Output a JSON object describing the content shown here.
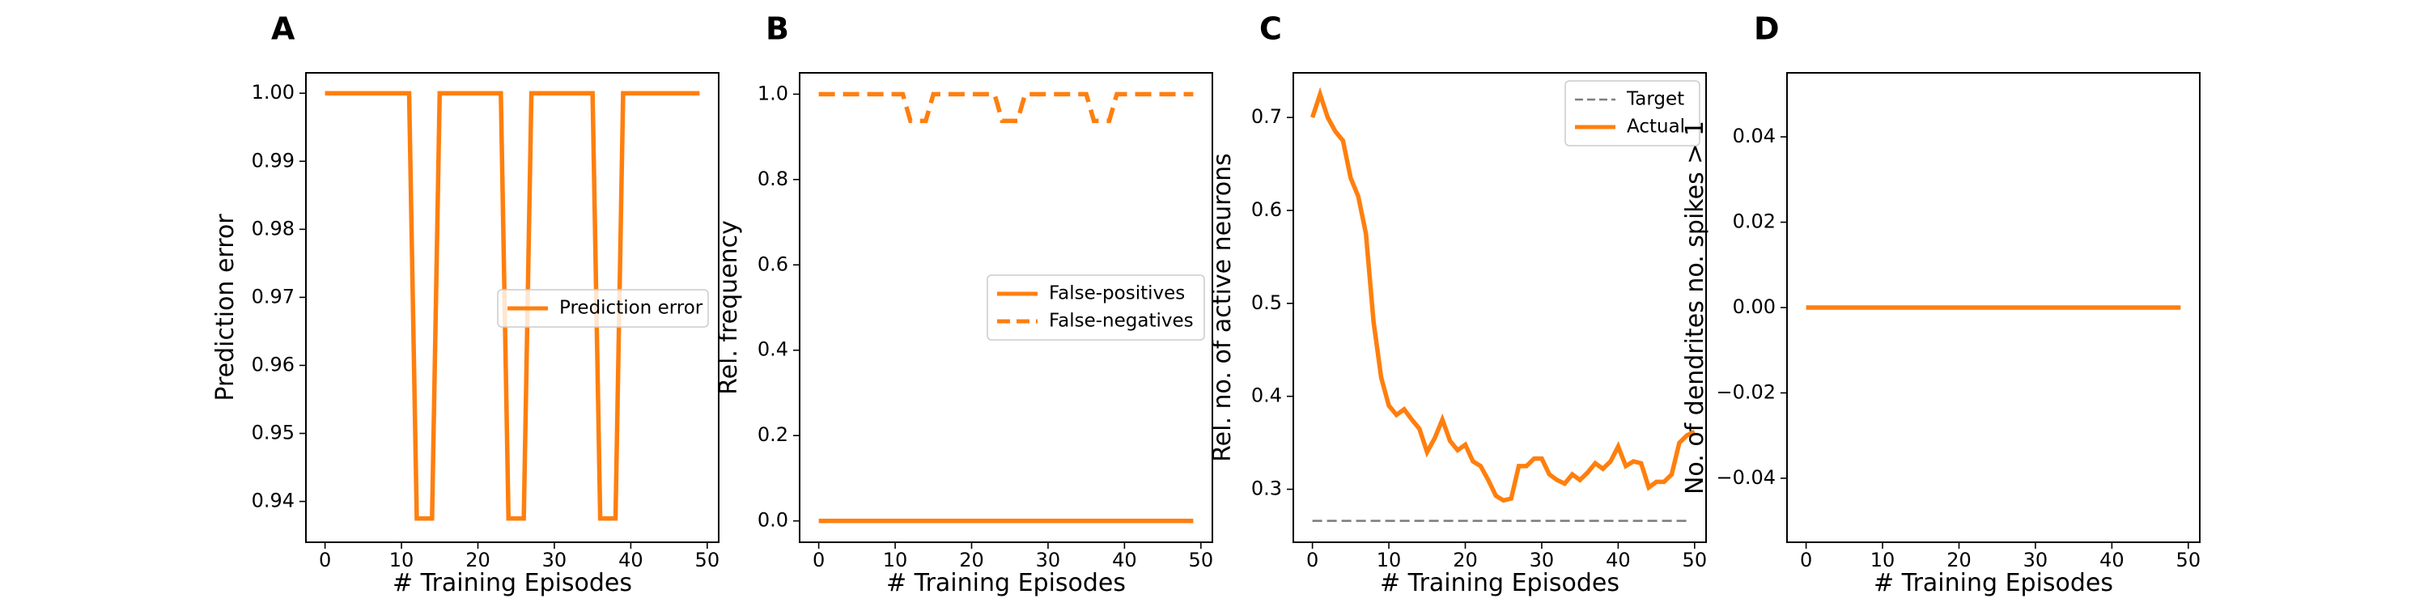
{
  "colors": {
    "series": "#ff7f0e",
    "target": "#7f7f7f",
    "axis": "#000000"
  },
  "chart_data": [
    {
      "panel": "A",
      "type": "line",
      "xlabel": "# Training Episodes",
      "ylabel": "Prediction error",
      "xlim": [
        -2.5,
        51.5
      ],
      "ylim": [
        0.934,
        1.003
      ],
      "xticks": [
        0,
        10,
        20,
        30,
        40,
        50
      ],
      "yticks": [
        0.94,
        0.95,
        0.96,
        0.97,
        0.98,
        0.99,
        1.0
      ],
      "ytick_labels": [
        "0.94",
        "0.95",
        "0.96",
        "0.97",
        "0.98",
        "0.99",
        "1.00"
      ],
      "legend": {
        "position": "center-right"
      },
      "series": [
        {
          "name": "Prediction error",
          "style": "solid",
          "x": [
            0,
            1,
            2,
            3,
            4,
            5,
            6,
            7,
            8,
            9,
            10,
            11,
            12,
            13,
            14,
            15,
            16,
            17,
            18,
            19,
            20,
            21,
            22,
            23,
            24,
            25,
            26,
            27,
            28,
            29,
            30,
            31,
            32,
            33,
            34,
            35,
            36,
            37,
            38,
            39,
            40,
            41,
            42,
            43,
            44,
            45,
            46,
            47,
            48,
            49
          ],
          "y": [
            1,
            1,
            1,
            1,
            1,
            1,
            1,
            1,
            1,
            1,
            1,
            1,
            0.9375,
            0.9375,
            0.9375,
            1,
            1,
            1,
            1,
            1,
            1,
            1,
            1,
            1,
            0.9375,
            0.9375,
            0.9375,
            1,
            1,
            1,
            1,
            1,
            1,
            1,
            1,
            1,
            0.9375,
            0.9375,
            0.9375,
            1,
            1,
            1,
            1,
            1,
            1,
            1,
            1,
            1,
            1,
            1
          ]
        }
      ]
    },
    {
      "panel": "B",
      "type": "line",
      "xlabel": "# Training Episodes",
      "ylabel": "Rel. frequency",
      "xlim": [
        -2.5,
        51.5
      ],
      "ylim": [
        -0.05,
        1.05
      ],
      "xticks": [
        0,
        10,
        20,
        30,
        40,
        50
      ],
      "yticks": [
        0.0,
        0.2,
        0.4,
        0.6,
        0.8,
        1.0
      ],
      "ytick_labels": [
        "0.0",
        "0.2",
        "0.4",
        "0.6",
        "0.8",
        "1.0"
      ],
      "legend": {
        "position": "center-right"
      },
      "series": [
        {
          "name": "False-positives",
          "style": "solid",
          "x": [
            0,
            1,
            2,
            3,
            4,
            5,
            6,
            7,
            8,
            9,
            10,
            11,
            12,
            13,
            14,
            15,
            16,
            17,
            18,
            19,
            20,
            21,
            22,
            23,
            24,
            25,
            26,
            27,
            28,
            29,
            30,
            31,
            32,
            33,
            34,
            35,
            36,
            37,
            38,
            39,
            40,
            41,
            42,
            43,
            44,
            45,
            46,
            47,
            48,
            49
          ],
          "y": [
            0,
            0,
            0,
            0,
            0,
            0,
            0,
            0,
            0,
            0,
            0,
            0,
            0,
            0,
            0,
            0,
            0,
            0,
            0,
            0,
            0,
            0,
            0,
            0,
            0,
            0,
            0,
            0,
            0,
            0,
            0,
            0,
            0,
            0,
            0,
            0,
            0,
            0,
            0,
            0,
            0,
            0,
            0,
            0,
            0,
            0,
            0,
            0,
            0,
            0
          ]
        },
        {
          "name": "False-negatives",
          "style": "dashed",
          "x": [
            0,
            1,
            2,
            3,
            4,
            5,
            6,
            7,
            8,
            9,
            10,
            11,
            12,
            13,
            14,
            15,
            16,
            17,
            18,
            19,
            20,
            21,
            22,
            23,
            24,
            25,
            26,
            27,
            28,
            29,
            30,
            31,
            32,
            33,
            34,
            35,
            36,
            37,
            38,
            39,
            40,
            41,
            42,
            43,
            44,
            45,
            46,
            47,
            48,
            49
          ],
          "y": [
            1,
            1,
            1,
            1,
            1,
            1,
            1,
            1,
            1,
            1,
            1,
            1,
            0.9375,
            0.9375,
            0.9375,
            1,
            1,
            1,
            1,
            1,
            1,
            1,
            1,
            1,
            0.9375,
            0.9375,
            0.9375,
            1,
            1,
            1,
            1,
            1,
            1,
            1,
            1,
            1,
            0.9375,
            0.9375,
            0.9375,
            1,
            1,
            1,
            1,
            1,
            1,
            1,
            1,
            1,
            1,
            1
          ]
        }
      ]
    },
    {
      "panel": "C",
      "type": "line",
      "xlabel": "# Training Episodes",
      "ylabel": "Rel. no. of active neurons",
      "xlim": [
        -2.5,
        51.5
      ],
      "ylim": [
        0.243,
        0.748
      ],
      "xticks": [
        0,
        10,
        20,
        30,
        40,
        50
      ],
      "yticks": [
        0.3,
        0.4,
        0.5,
        0.6,
        0.7
      ],
      "ytick_labels": [
        "0.3",
        "0.4",
        "0.5",
        "0.6",
        "0.7"
      ],
      "legend": {
        "position": "top-right"
      },
      "series": [
        {
          "name": "Target",
          "style": "dashed",
          "x": [
            0,
            49
          ],
          "y": [
            0.266,
            0.266
          ]
        },
        {
          "name": "Actual",
          "style": "solid",
          "x": [
            0,
            1,
            2,
            3,
            4,
            5,
            6,
            7,
            8,
            9,
            10,
            11,
            12,
            13,
            14,
            15,
            16,
            17,
            18,
            19,
            20,
            21,
            22,
            23,
            24,
            25,
            26,
            27,
            28,
            29,
            30,
            31,
            32,
            33,
            34,
            35,
            36,
            37,
            38,
            39,
            40,
            41,
            42,
            43,
            44,
            45,
            46,
            47,
            48,
            49,
            50
          ],
          "y": [
            0.7,
            0.725,
            0.7,
            0.685,
            0.675,
            0.635,
            0.615,
            0.575,
            0.48,
            0.42,
            0.39,
            0.38,
            0.386,
            0.375,
            0.365,
            0.34,
            0.355,
            0.375,
            0.352,
            0.342,
            0.348,
            0.33,
            0.325,
            0.31,
            0.293,
            0.288,
            0.29,
            0.325,
            0.325,
            0.333,
            0.333,
            0.316,
            0.31,
            0.306,
            0.316,
            0.31,
            0.318,
            0.328,
            0.322,
            0.33,
            0.346,
            0.325,
            0.33,
            0.328,
            0.302,
            0.308,
            0.308,
            0.316,
            0.35,
            0.358,
            0.362
          ]
        }
      ]
    },
    {
      "panel": "D",
      "type": "line",
      "xlabel": "# Training Episodes",
      "ylabel": "No. of dendrites no. spikes > 1",
      "xlim": [
        -2.5,
        51.5
      ],
      "ylim": [
        -0.055,
        0.055
      ],
      "xticks": [
        0,
        10,
        20,
        30,
        40,
        50
      ],
      "yticks": [
        -0.04,
        -0.02,
        0.0,
        0.02,
        0.04
      ],
      "ytick_labels": [
        "−0.04",
        "−0.02",
        "0.00",
        "0.02",
        "0.04"
      ],
      "legend": null,
      "series": [
        {
          "style": "solid",
          "x": [
            0,
            49
          ],
          "y": [
            0,
            0
          ]
        }
      ]
    }
  ]
}
